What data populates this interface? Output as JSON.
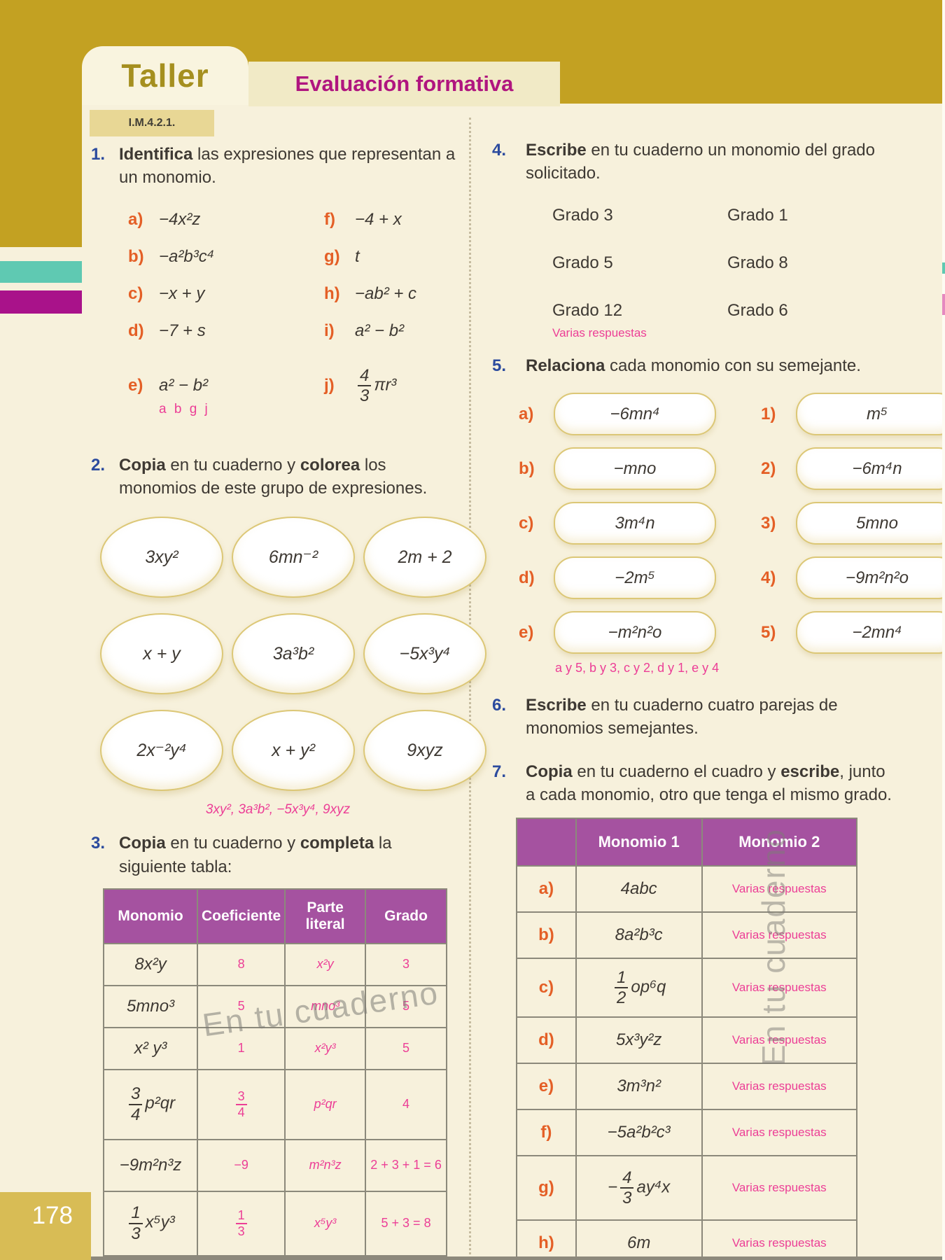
{
  "page": {
    "tab": "Taller",
    "header": "Evaluación formativa",
    "badge": "I.M.4.2.1.",
    "number": "178",
    "watermark": "En tu cuaderno"
  },
  "colors": {
    "band_gold": "#C3A122",
    "page_cream": "#F7F1DC",
    "header_magenta": "#B0157F",
    "table_purple": "#A552A0",
    "letter_orange": "#E45F26",
    "number_blue": "#2C4B9E",
    "answer_pink": "#EC3E96",
    "stripe_teal": "#5FC9B2",
    "stripe_magenta": "#A9128A",
    "pagenum_gold": "#D8BC55"
  },
  "ex1": {
    "num": "1.",
    "p1": "Identifica",
    "p2": " las expresiones que representan a un monomio.",
    "items_left": [
      {
        "l": "a)",
        "e": "−4x²z"
      },
      {
        "l": "b)",
        "e": "−a²b³c⁴"
      },
      {
        "l": "c)",
        "e": "−x + y"
      },
      {
        "l": "d)",
        "e": "−7 + s"
      },
      {
        "l": "e)",
        "e": "a² − b²"
      }
    ],
    "items_right": [
      {
        "l": "f)",
        "e": "−4 + x"
      },
      {
        "l": "g)",
        "e": "t"
      },
      {
        "l": "h)",
        "e": "−ab² + c"
      },
      {
        "l": "i)",
        "e": "a² − b²"
      },
      {
        "l": "j)",
        "frac_num": "4",
        "frac_den": "3",
        "rest": "πr³"
      }
    ],
    "answer": "a b g j"
  },
  "ex2": {
    "num": "2.",
    "p1": "Copia",
    "p2": " en tu cuaderno y ",
    "p3": "colorea",
    "p4": " los monomios de este grupo de expresiones.",
    "ovals": [
      "3xy²",
      "6mn⁻²",
      "2m + 2",
      "x + y",
      "3a³b²",
      "−5x³y⁴",
      "2x⁻²y⁴",
      "x + y²",
      "9xyz"
    ],
    "answer": "3xy², 3a³b², −5x³y⁴, 9xyz"
  },
  "ex3": {
    "num": "3.",
    "p1": "Copia",
    "p2": " en tu cuaderno y ",
    "p3": "completa",
    "p4": " la siguiente tabla:",
    "headers": [
      "Monomio",
      "Coeficiente",
      "Parte literal",
      "Grado"
    ],
    "rows": [
      {
        "m": "8x²y",
        "c": "8",
        "p": "x²y",
        "g": "3"
      },
      {
        "m": "5mno³",
        "c": "5",
        "p": "mno³",
        "g": "5"
      },
      {
        "m": "x² y³",
        "c": "1",
        "p": "x²y³",
        "g": "5"
      },
      {
        "m_num": "3",
        "m_den": "4",
        "m_rest": "p²qr",
        "c_num": "3",
        "c_den": "4",
        "p": "p²qr",
        "g": "4"
      },
      {
        "m": "−9m²n³z",
        "c": "−9",
        "p": "m²n³z",
        "g": "2 + 3 + 1 = 6"
      },
      {
        "m_num": "1",
        "m_den": "3",
        "m_rest": "x⁵y³",
        "c_num": "1",
        "c_den": "3",
        "p": "x⁵y³",
        "g": "5 + 3 = 8"
      }
    ]
  },
  "ex4": {
    "num": "4.",
    "p1": "Escribe",
    "p2": " en tu cuaderno un monomio del grado solicitado.",
    "grades": [
      "Grado 3",
      "Grado 1",
      "Grado 5",
      "Grado 8",
      "Grado 12",
      "Grado 6"
    ],
    "answer": "Varias respuestas"
  },
  "ex5": {
    "num": "5.",
    "p1": "Relaciona",
    "p2": " cada monomio con su semejante.",
    "left": [
      {
        "l": "a)",
        "e": "−6mn⁴"
      },
      {
        "l": "b)",
        "e": "−mno"
      },
      {
        "l": "c)",
        "e": "3m⁴n"
      },
      {
        "l": "d)",
        "e": "−2m⁵"
      },
      {
        "l": "e)",
        "e": "−m²n²o"
      }
    ],
    "right": [
      {
        "l": "1)",
        "e": "m⁵"
      },
      {
        "l": "2)",
        "e": "−6m⁴n"
      },
      {
        "l": "3)",
        "e": "5mno"
      },
      {
        "l": "4)",
        "e": "−9m²n²o"
      },
      {
        "l": "5)",
        "e": "−2mn⁴"
      }
    ],
    "answer": "a y 5, b y 3, c y 2, d y 1, e y 4"
  },
  "ex6": {
    "num": "6.",
    "p1": "Escribe",
    "p2": " en tu cuaderno cuatro parejas de monomios semejantes."
  },
  "ex7": {
    "num": "7.",
    "p1": "Copia",
    "p2": " en tu cuaderno el cuadro y ",
    "p3": "escribe",
    "p4": ", junto a cada monomio, otro que tenga el mismo grado.",
    "headers": [
      "Monomio 1",
      "Monomio 2"
    ],
    "rows": [
      {
        "l": "a)",
        "m": "4abc",
        "a": "Varias respuestas"
      },
      {
        "l": "b)",
        "m": "8a²b³c",
        "a": "Varias respuestas"
      },
      {
        "l": "c)",
        "f_num": "1",
        "f_den": "2",
        "f_rest": "op⁶q",
        "a": "Varias respuestas"
      },
      {
        "l": "d)",
        "m": "5x³y²z",
        "a": "Varias respuestas"
      },
      {
        "l": "e)",
        "m": "3m³n²",
        "a": "Varias respuestas"
      },
      {
        "l": "f)",
        "m": "−5a²b²c³",
        "a": "Varias respuestas"
      },
      {
        "l": "g)",
        "f_sign": "−",
        "f_num": "4",
        "f_den": "3",
        "f_rest": "ay⁴x",
        "a": "Varias respuestas"
      },
      {
        "l": "h)",
        "m": "6m",
        "a": "Varias respuestas"
      }
    ]
  }
}
